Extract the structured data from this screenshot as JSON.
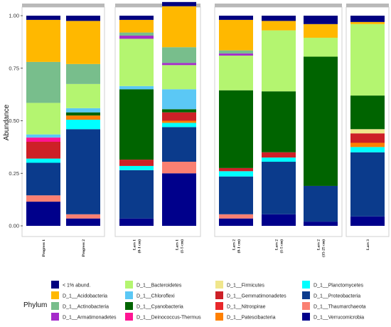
{
  "chart_data": {
    "type": "bar",
    "stacked": true,
    "ylabel": "Abundance",
    "ylim": [
      0,
      1
    ],
    "yticks": [
      "0.00",
      "0.25",
      "0.50",
      "0.75",
      "1.00"
    ],
    "legend_title": "Phylum",
    "legend_position": "bottom",
    "categories": [
      "Progress 1",
      "Progress 2",
      "Lars 1 (0-1 cm)",
      "Lars 1 (1-5 cm)",
      "Lars 2 (0-1 cm)",
      "Lars 2 (1-5 cm)",
      "Lars 2 (15-25 cm)",
      "Lars 3"
    ],
    "groups": [
      {
        "members": [
          0,
          1
        ]
      },
      {
        "members": [
          2,
          3
        ]
      },
      {
        "members": [
          4,
          5,
          6
        ]
      },
      {
        "members": [
          7
        ]
      }
    ],
    "series": [
      {
        "name": "Verrucomicrobia",
        "color": "#00008B",
        "values": [
          0.115,
          0.035,
          0.035,
          0.25,
          0.035,
          0.055,
          0.02,
          0.045
        ]
      },
      {
        "name": "Thaumarchaeota",
        "color": "#FA8072",
        "values": [
          0.03,
          0.02,
          0.0,
          0.055,
          0.02,
          0.0,
          0.0,
          0.0
        ]
      },
      {
        "name": "Proteobacteria",
        "color": "#0B3B8C",
        "values": [
          0.155,
          0.405,
          0.23,
          0.165,
          0.18,
          0.25,
          0.17,
          0.305
        ]
      },
      {
        "name": "Planctomycetes",
        "color": "#00FFFF",
        "values": [
          0.02,
          0.045,
          0.02,
          0.02,
          0.025,
          0.02,
          0.0,
          0.025
        ]
      },
      {
        "name": "Patescibacteria",
        "color": "#FF8000",
        "values": [
          0.0,
          0.02,
          0.0,
          0.01,
          0.0,
          0.0,
          0.0,
          0.02
        ]
      },
      {
        "name": "Nitrospirae",
        "color": "#E8272A",
        "values": [
          0.0,
          0.0,
          0.0,
          0.0,
          0.0,
          0.0,
          0.0,
          0.0
        ]
      },
      {
        "name": "Gemmatimonadetes",
        "color": "#CD2027",
        "values": [
          0.08,
          0.0,
          0.03,
          0.04,
          0.015,
          0.025,
          0.0,
          0.045
        ]
      },
      {
        "name": "Firmicutes",
        "color": "#F0E68C",
        "values": [
          0.0,
          0.0,
          0.0,
          0.0,
          0.0,
          0.0,
          0.0,
          0.02
        ]
      },
      {
        "name": "Deinococcus-Thermus",
        "color": "#FF1493",
        "values": [
          0.02,
          0.0,
          0.0,
          0.0,
          0.0,
          0.0,
          0.0,
          0.0
        ]
      },
      {
        "name": "Cyanobacteria",
        "color": "#006400",
        "values": [
          0.0,
          0.015,
          0.335,
          0.015,
          0.37,
          0.29,
          0.615,
          0.16
        ]
      },
      {
        "name": "Chloroflexi",
        "color": "#5BC8F5",
        "values": [
          0.015,
          0.02,
          0.015,
          0.095,
          0.0,
          0.0,
          0.0,
          0.0
        ]
      },
      {
        "name": "Bacteroidetes",
        "color": "#B4F570",
        "values": [
          0.15,
          0.115,
          0.225,
          0.115,
          0.165,
          0.29,
          0.09,
          0.34
        ]
      },
      {
        "name": "Armatimonadetes",
        "color": "#A52ACA",
        "values": [
          0.0,
          0.0,
          0.015,
          0.01,
          0.01,
          0.0,
          0.0,
          0.0
        ]
      },
      {
        "name": "Actinobacteria",
        "color": "#78BE8C",
        "values": [
          0.195,
          0.095,
          0.015,
          0.075,
          0.015,
          0.0,
          0.0,
          0.0
        ]
      },
      {
        "name": "Acidobacteria",
        "color": "#FFB800",
        "values": [
          0.2,
          0.205,
          0.06,
          0.195,
          0.145,
          0.045,
          0.065,
          0.01
        ]
      },
      {
        "name": "< 1% abund.",
        "color": "#000080",
        "values": [
          0.02,
          0.025,
          0.015,
          0.02,
          0.015,
          0.025,
          0.035,
          0.025
        ]
      }
    ],
    "legend": [
      {
        "name": "< 1% abund.",
        "color": "#000080"
      },
      {
        "name": "D_1__Acidobacteria",
        "color": "#FFB800"
      },
      {
        "name": "D_1__Actinobacteria",
        "color": "#78BE8C"
      },
      {
        "name": "D_1__Armatimonadetes",
        "color": "#A52ACA"
      },
      {
        "name": "D_1__Bacteroidetes",
        "color": "#B4F570"
      },
      {
        "name": "D_1__Chloroflexi",
        "color": "#5BC8F5"
      },
      {
        "name": "D_1__Cyanobacteria",
        "color": "#006400"
      },
      {
        "name": "D_1__Deinococcus-Thermus",
        "color": "#FF1493"
      },
      {
        "name": "D_1__Firmicutes",
        "color": "#F0E68C"
      },
      {
        "name": "D_1__Gemmatimonadetes",
        "color": "#CD2027"
      },
      {
        "name": "D_1__Nitrospirae",
        "color": "#E8272A"
      },
      {
        "name": "D_1__Patescibacteria",
        "color": "#FF8000"
      },
      {
        "name": "D_1__Planctomycetes",
        "color": "#00FFFF"
      },
      {
        "name": "D_1__Proteobacteria",
        "color": "#0B3B8C"
      },
      {
        "name": "D_1__Thaumarchaeota",
        "color": "#FA8072"
      },
      {
        "name": "D_1__Verrucomicrobia",
        "color": "#00008B"
      }
    ]
  }
}
